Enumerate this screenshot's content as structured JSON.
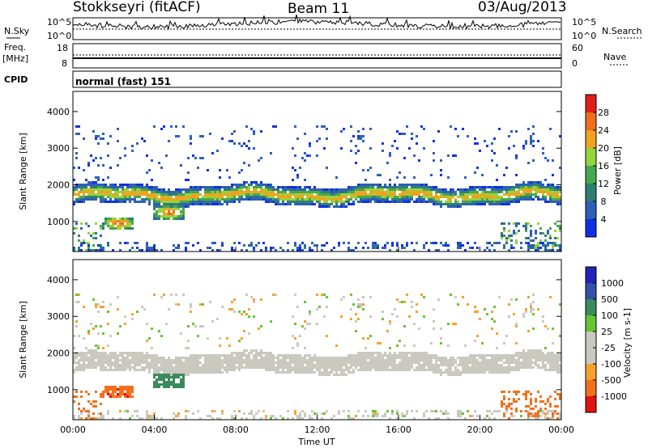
{
  "header": {
    "station": "Stokkseyri (fitACF)",
    "beam": "Beam 11",
    "date": "03/Aug/2013"
  },
  "strips": {
    "nsky_label": "N.Sky",
    "nsearch_label": "N.Search",
    "freq_label": "Freq.",
    "freq_unit": "[MHz]",
    "nave_label": "Nave",
    "cpid_label": "CPID",
    "cpid_value": "normal (fast) 151",
    "noise_ticks": {
      "top": "10^5",
      "bottom": "10^0"
    },
    "freq_ticks": [
      "18",
      "8"
    ],
    "nave_ticks": [
      "60",
      "0"
    ]
  },
  "colors": {
    "power": [
      "#1030e6",
      "#2d5fb8",
      "#2e7f73",
      "#46a84e",
      "#96d43c",
      "#f0a21f",
      "#f06d1d",
      "#e21e1a"
    ],
    "velocity": [
      "#e21111",
      "#f4701c",
      "#f6a12d",
      "#c9c9c0",
      "#c9c9c0",
      "#66c533",
      "#3b8a5d",
      "#3450a8",
      "#2222b8"
    ]
  },
  "chart_data": [
    {
      "type": "heatmap",
      "panel": "power",
      "ylabel": "Slant Range [km]",
      "yticks": [
        "1000",
        "2000",
        "3000",
        "4000"
      ],
      "ylim": [
        180,
        4550
      ],
      "xlim": [
        0,
        24
      ],
      "colorbar_label": "Power [dB]",
      "colorbar_ticks": [
        "4",
        "8",
        "12",
        "16",
        "20",
        "24",
        "28"
      ],
      "colorbar_range": [
        0,
        32
      ],
      "features": [
        {
          "name": "main band",
          "range_km": [
            1500,
            1950
          ],
          "time_h": [
            0,
            24
          ],
          "peak_db": 20
        },
        {
          "name": "near-range patch 1",
          "range_km": [
            800,
            1100
          ],
          "time_h": [
            1.5,
            3.0
          ],
          "peak_db": 24
        },
        {
          "name": "near-range patch 2",
          "range_km": [
            1050,
            1450
          ],
          "time_h": [
            4.0,
            5.5
          ],
          "peak_db": 24
        },
        {
          "name": "far scatter",
          "range_km": [
            2100,
            3500
          ],
          "time_h": [
            0,
            24
          ],
          "peak_db": 8
        }
      ]
    },
    {
      "type": "heatmap",
      "panel": "velocity",
      "ylabel": "Slant Range [km]",
      "yticks": [
        "1000",
        "2000",
        "3000",
        "4000"
      ],
      "ylim": [
        180,
        4550
      ],
      "xlim": [
        0,
        24
      ],
      "xlabel": "Time UT",
      "xticks": [
        "00:00",
        "04:00",
        "08:00",
        "12:00",
        "16:00",
        "20:00",
        "00:00"
      ],
      "colorbar_label": "Velocity [m s-1]",
      "colorbar_ticks": [
        "1000",
        "500",
        "100",
        "25",
        "-25",
        "-100",
        "-500",
        "-1000"
      ],
      "features": [
        {
          "name": "ground scatter band",
          "range_km": [
            1500,
            1950
          ],
          "time_h": [
            0,
            24
          ],
          "velocity_ms": 0
        },
        {
          "name": "receding patch 1",
          "range_km": [
            800,
            1100
          ],
          "time_h": [
            1.5,
            3.0
          ],
          "velocity_ms": -300
        },
        {
          "name": "approaching patch 2",
          "range_km": [
            1050,
            1450
          ],
          "time_h": [
            4.0,
            5.5
          ],
          "velocity_ms": 200
        }
      ]
    }
  ]
}
